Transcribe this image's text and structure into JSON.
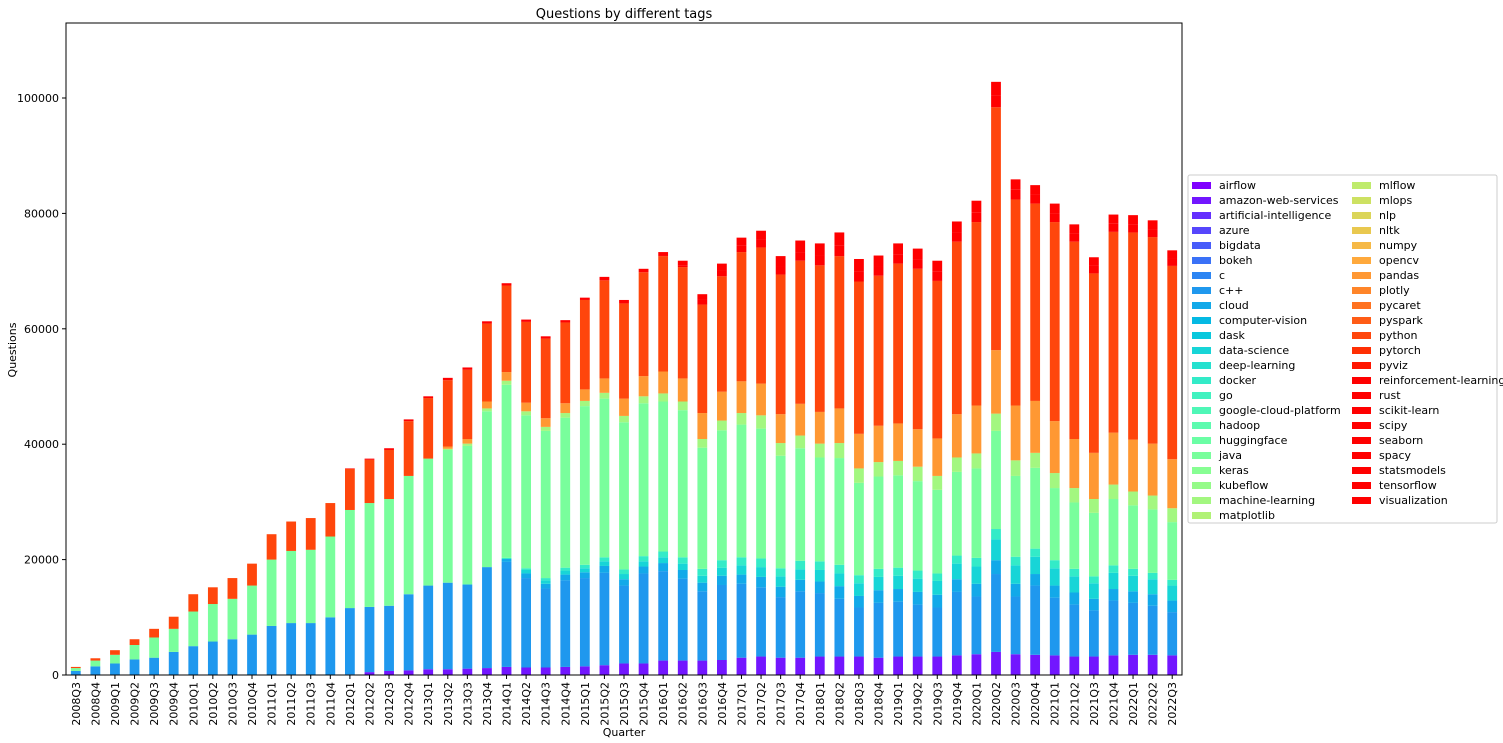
{
  "chart_data": {
    "type": "bar",
    "stacked": true,
    "title": "Questions by different tags",
    "xlabel": "Quarter",
    "ylabel": "Questions",
    "ylim": [
      0,
      113000
    ],
    "yticks": [
      0,
      20000,
      40000,
      60000,
      80000,
      100000
    ],
    "legend_position": "center-right",
    "legend_entries": [
      "airflow",
      "amazon-web-services",
      "artificial-intelligence",
      "azure",
      "bigdata",
      "bokeh",
      "c",
      "c++",
      "cloud",
      "computer-vision",
      "dask",
      "data-science",
      "deep-learning",
      "docker",
      "go",
      "google-cloud-platform",
      "hadoop",
      "huggingface",
      "java",
      "keras",
      "kubeflow",
      "machine-learning",
      "matplotlib",
      "mlflow",
      "mlops",
      "nlp",
      "nltk",
      "numpy",
      "opencv",
      "pandas",
      "plotly",
      "pycaret",
      "pyspark",
      "python",
      "pytorch",
      "pyviz",
      "reinforcement-learning",
      "rust",
      "scikit-learn",
      "scipy",
      "seaborn",
      "spacy",
      "statsmodels",
      "tensorflow",
      "visualization"
    ],
    "colors": [
      "#7f00ff",
      "#7216ff",
      "#642ffe",
      "#5646fc",
      "#485cfa",
      "#3a71f7",
      "#2c85f3",
      "#1f98ee",
      "#12a9e9",
      "#04b9e3",
      "#09c8dd",
      "#17d5d7",
      "#25e1cf",
      "#33ebc8",
      "#41f2c0",
      "#4ff7b7",
      "#5dfbaf",
      "#6bfea5",
      "#79fe9c",
      "#87fe93",
      "#95fb89",
      "#a3f780",
      "#b1f276",
      "#bfeb6c",
      "#cde162",
      "#dbd559",
      "#e9c84f",
      "#f6b946",
      "#ffa93c",
      "#ff9833",
      "#ff8529",
      "#ff7220",
      "#ff5c16",
      "#ff460c",
      "#ff2f03",
      "#ff1600",
      "#ff0000",
      "#fe0000",
      "#ff0000",
      "#ff0000",
      "#ff0000",
      "#ff0000",
      "#ff0000",
      "#ff0000",
      "#ff0000"
    ],
    "categories": [
      "2008Q3",
      "2008Q4",
      "2009Q1",
      "2009Q2",
      "2009Q3",
      "2009Q4",
      "2010Q1",
      "2010Q2",
      "2010Q3",
      "2010Q4",
      "2011Q1",
      "2011Q2",
      "2011Q3",
      "2011Q4",
      "2012Q1",
      "2012Q2",
      "2012Q3",
      "2012Q4",
      "2013Q1",
      "2013Q2",
      "2013Q3",
      "2013Q4",
      "2014Q1",
      "2014Q2",
      "2014Q3",
      "2014Q4",
      "2015Q1",
      "2015Q2",
      "2015Q3",
      "2015Q4",
      "2016Q1",
      "2016Q2",
      "2016Q3",
      "2016Q4",
      "2017Q1",
      "2017Q2",
      "2017Q3",
      "2017Q4",
      "2018Q1",
      "2018Q2",
      "2018Q3",
      "2018Q4",
      "2019Q1",
      "2019Q2",
      "2019Q3",
      "2019Q4",
      "2020Q1",
      "2020Q2",
      "2020Q3",
      "2020Q4",
      "2021Q1",
      "2021Q2",
      "2021Q3",
      "2021Q4",
      "2022Q1",
      "2022Q2",
      "2022Q3"
    ],
    "segments": {
      "amazon-web-services": [
        0,
        0,
        0,
        0,
        0,
        0,
        0,
        0,
        0,
        0,
        0,
        0,
        0,
        0,
        100,
        500,
        700,
        800,
        1000,
        1000,
        1100,
        1200,
        1400,
        1300,
        1300,
        1400,
        1500,
        1700,
        2000,
        2000,
        2500,
        2500,
        2500,
        2600,
        3000,
        3200,
        3000,
        3000,
        3200,
        3200,
        3200,
        3000,
        3200,
        3200,
        3200,
        3400,
        3600,
        4000,
        3600,
        3500,
        3400,
        3200,
        3200,
        3400,
        3500,
        3500,
        3400
      ],
      "c++": [
        700,
        1500,
        2000,
        2700,
        3000,
        4000,
        5000,
        5800,
        6200,
        7000,
        8500,
        9000,
        9000,
        10000,
        11500,
        11300,
        11300,
        13200,
        14500,
        15000,
        14500,
        17500,
        18200,
        15500,
        13700,
        15000,
        15300,
        16000,
        13500,
        15600,
        15500,
        14200,
        12000,
        13000,
        12800,
        12000,
        10500,
        11500,
        11000,
        10000,
        8500,
        9500,
        9500,
        9000,
        8500,
        11000,
        10000,
        13500,
        10000,
        12000,
        10000,
        9000,
        8000,
        9500,
        9000,
        8500,
        7500
      ],
      "cloud": [
        0,
        0,
        0,
        0,
        0,
        0,
        0,
        0,
        0,
        0,
        0,
        0,
        0,
        0,
        0,
        0,
        0,
        0,
        0,
        0,
        100,
        0,
        500,
        800,
        800,
        1000,
        1000,
        1200,
        1100,
        1200,
        1400,
        1500,
        1500,
        1600,
        1600,
        1800,
        1800,
        2000,
        2000,
        2200,
        2000,
        2200,
        2200,
        2200,
        2200,
        2200,
        2200,
        2400,
        2200,
        2000,
        2100,
        2100,
        2000,
        2000,
        2000,
        2000,
        2000
      ],
      "data-science": [
        0,
        0,
        0,
        0,
        0,
        0,
        0,
        0,
        0,
        0,
        0,
        0,
        0,
        0,
        0,
        0,
        0,
        0,
        0,
        0,
        0,
        0,
        0,
        600,
        600,
        700,
        700,
        800,
        900,
        900,
        1000,
        1100,
        1200,
        1400,
        1600,
        1700,
        1800,
        1800,
        2000,
        2200,
        2200,
        2300,
        2300,
        2300,
        2400,
        2700,
        3000,
        3600,
        3200,
        3000,
        3000,
        2800,
        2700,
        2800,
        2700,
        2600,
        2600
      ],
      "docker": [
        0,
        0,
        0,
        0,
        0,
        0,
        0,
        0,
        0,
        0,
        0,
        0,
        0,
        0,
        0,
        0,
        0,
        0,
        0,
        0,
        0,
        0,
        200,
        300,
        400,
        500,
        600,
        700,
        800,
        900,
        1000,
        1100,
        1200,
        1300,
        1400,
        1500,
        1400,
        1500,
        1500,
        1500,
        1400,
        1400,
        1400,
        1400,
        1300,
        1400,
        1500,
        1800,
        1500,
        1400,
        1400,
        1300,
        1200,
        1300,
        1200,
        1100,
        1000
      ],
      "java": [
        500,
        1000,
        1500,
        2500,
        3500,
        4000,
        6000,
        6500,
        7000,
        8500,
        11500,
        12500,
        12700,
        14000,
        17000,
        18000,
        18500,
        20500,
        22000,
        23000,
        24000,
        27000,
        30000,
        26500,
        25500,
        26000,
        27500,
        27500,
        25500,
        26500,
        26000,
        25500,
        21000,
        22500,
        23000,
        22500,
        19500,
        19500,
        18000,
        18500,
        16000,
        16000,
        16000,
        15500,
        14500,
        14500,
        15500,
        17000,
        14000,
        14000,
        12500,
        11500,
        11000,
        11500,
        11000,
        11000,
        10000
      ],
      "machine-learning": [
        0,
        0,
        0,
        0,
        0,
        0,
        0,
        0,
        0,
        0,
        0,
        0,
        0,
        0,
        0,
        0,
        0,
        0,
        0,
        200,
        400,
        500,
        700,
        700,
        700,
        800,
        900,
        1000,
        1100,
        1200,
        1400,
        1500,
        1500,
        1700,
        2000,
        2300,
        2200,
        2200,
        2400,
        2600,
        2500,
        2500,
        2500,
        2500,
        2400,
        2500,
        2600,
        3000,
        2700,
        2600,
        2600,
        2500,
        2400,
        2500,
        2400,
        2400,
        2400
      ],
      "pandas": [
        0,
        0,
        0,
        0,
        0,
        0,
        0,
        0,
        0,
        0,
        0,
        0,
        0,
        0,
        0,
        0,
        0,
        0,
        0,
        400,
        800,
        1200,
        1500,
        1500,
        1500,
        1700,
        2000,
        2500,
        3000,
        3500,
        3800,
        4000,
        4500,
        5000,
        5500,
        5500,
        5000,
        5500,
        5500,
        6000,
        6000,
        6300,
        6500,
        6500,
        6500,
        7500,
        8300,
        11000,
        9500,
        9000,
        9000,
        8500,
        8000,
        9000,
        9000,
        9000,
        8500
      ],
      "python": [
        200,
        400,
        800,
        1000,
        1500,
        2100,
        3000,
        2900,
        3600,
        3800,
        4400,
        5100,
        5500,
        5800,
        7100,
        7500,
        8500,
        9500,
        10500,
        11500,
        12000,
        13500,
        15000,
        14000,
        13800,
        14000,
        15500,
        17000,
        16500,
        18000,
        20000,
        19300,
        18800,
        20000,
        22400,
        23600,
        24200,
        24800,
        25400,
        26400,
        26400,
        26000,
        27700,
        27800,
        27300,
        29900,
        31800,
        42100,
        35700,
        34200,
        34500,
        34200,
        31100,
        34800,
        35900,
        35800,
        33500
      ],
      "tensorflow": [
        0,
        0,
        0,
        0,
        0,
        0,
        0,
        0,
        0,
        0,
        0,
        0,
        0,
        0,
        0,
        0,
        0,
        0,
        0,
        0,
        0,
        0,
        0,
        0,
        0,
        0,
        0,
        0,
        0,
        0,
        100,
        300,
        800,
        1000,
        1200,
        1300,
        1400,
        1500,
        1700,
        1900,
        1800,
        1600,
        1600,
        1600,
        1600,
        1600,
        1700,
        2100,
        1700,
        1500,
        1500,
        1400,
        1300,
        1400,
        1400,
        1300,
        1200
      ],
      "visualization": [
        0,
        0,
        0,
        0,
        0,
        0,
        0,
        0,
        0,
        0,
        0,
        0,
        0,
        0,
        100,
        200,
        300,
        300,
        300,
        400,
        400,
        400,
        400,
        400,
        400,
        400,
        400,
        600,
        600,
        600,
        600,
        800,
        1000,
        1200,
        1300,
        1600,
        1800,
        2000,
        2100,
        2200,
        2100,
        1900,
        1900,
        1900,
        1900,
        1900,
        2000,
        2300,
        1800,
        1700,
        1700,
        1600,
        1500,
        1600,
        1600,
        1600,
        1500
      ]
    }
  }
}
